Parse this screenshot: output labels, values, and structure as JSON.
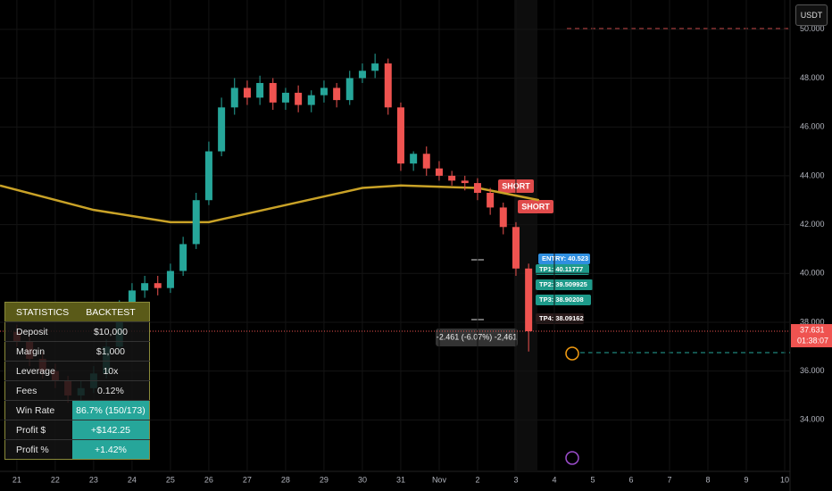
{
  "chart_data": {
    "type": "candlestick",
    "x": [
      0,
      0.33,
      0.67,
      1,
      1.33,
      1.67,
      2,
      2.33,
      2.67,
      3,
      3.33,
      3.67,
      4,
      4.33,
      4.67,
      5,
      5.33,
      5.67,
      6,
      6.33,
      6.67,
      7,
      7.33,
      7.67,
      8,
      8.33,
      8.67,
      9,
      9.33,
      9.67,
      10,
      10.33,
      10.67,
      11,
      11.33,
      11.67,
      12,
      12.33,
      12.67,
      13,
      13.33
    ],
    "open": [
      37.6,
      37.2,
      36.5,
      36.0,
      35.6,
      35.0,
      35.3,
      35.9,
      37.0,
      38.6,
      39.3,
      39.6,
      39.4,
      40.1,
      41.2,
      43.0,
      45.0,
      46.8,
      47.6,
      47.2,
      47.8,
      47.0,
      47.4,
      46.9,
      47.3,
      47.6,
      47.1,
      48.0,
      48.3,
      48.6,
      46.8,
      44.5,
      44.9,
      44.3,
      44.0,
      43.8,
      43.7,
      43.3,
      42.7,
      41.9,
      40.2
    ],
    "high": [
      37.9,
      37.4,
      36.8,
      36.3,
      35.8,
      35.6,
      36.2,
      37.3,
      38.9,
      39.6,
      39.9,
      39.9,
      40.4,
      41.5,
      43.3,
      45.4,
      47.2,
      48.0,
      47.9,
      48.1,
      48.0,
      47.6,
      47.7,
      47.5,
      47.9,
      47.8,
      48.3,
      48.6,
      49.0,
      48.8,
      47.0,
      45.0,
      45.2,
      44.6,
      44.2,
      44.0,
      43.9,
      43.5,
      42.9,
      42.1,
      40.4
    ],
    "low": [
      37.0,
      36.2,
      35.7,
      35.3,
      34.7,
      34.8,
      35.1,
      35.7,
      36.8,
      38.4,
      39.0,
      39.1,
      39.2,
      39.9,
      41.0,
      42.8,
      44.8,
      46.5,
      46.9,
      46.9,
      46.7,
      46.7,
      46.6,
      46.6,
      47.0,
      46.8,
      46.9,
      47.8,
      48.0,
      46.5,
      44.2,
      44.2,
      44.0,
      43.8,
      43.6,
      43.4,
      43.0,
      42.4,
      41.6,
      39.9,
      36.8
    ],
    "close": [
      37.2,
      36.5,
      36.0,
      35.6,
      35.0,
      35.3,
      35.9,
      37.0,
      38.6,
      39.3,
      39.6,
      39.4,
      40.1,
      41.2,
      43.0,
      45.0,
      46.8,
      47.6,
      47.2,
      47.8,
      47.0,
      47.4,
      46.9,
      47.3,
      47.6,
      47.1,
      48.0,
      48.3,
      48.6,
      46.8,
      44.5,
      44.9,
      44.3,
      44.0,
      43.8,
      43.7,
      43.3,
      42.7,
      41.9,
      40.2,
      37.631
    ],
    "up_color": "#26a69a",
    "down_color": "#ef5350",
    "ma": {
      "color": "#c9a227",
      "x": [
        -0.44,
        2,
        4,
        5,
        7,
        9,
        10,
        12,
        13.6
      ],
      "values": [
        43.6,
        42.6,
        42.1,
        42.1,
        42.8,
        43.5,
        43.6,
        43.5,
        43.0
      ]
    },
    "last_price_label": "37.631",
    "countdown": "01:38:07",
    "xlim": [
      -0.44,
      20.14
    ],
    "ylim": [
      32,
      51.2
    ],
    "xticks": [
      {
        "value": 0,
        "label": "21"
      },
      {
        "value": 1,
        "label": "22"
      },
      {
        "value": 2,
        "label": "23"
      },
      {
        "value": 3,
        "label": "24"
      },
      {
        "value": 4,
        "label": "25"
      },
      {
        "value": 5,
        "label": "26"
      },
      {
        "value": 6,
        "label": "27"
      },
      {
        "value": 7,
        "label": "28"
      },
      {
        "value": 8,
        "label": "29"
      },
      {
        "value": 9,
        "label": "30"
      },
      {
        "value": 10,
        "label": "31"
      },
      {
        "value": 11,
        "label": "Nov"
      },
      {
        "value": 12,
        "label": "2"
      },
      {
        "value": 13,
        "label": "3"
      },
      {
        "value": 14,
        "label": "4"
      },
      {
        "value": 15,
        "label": "5"
      },
      {
        "value": 16,
        "label": "6"
      },
      {
        "value": 17,
        "label": "7"
      },
      {
        "value": 18,
        "label": "8"
      },
      {
        "value": 19,
        "label": "9"
      },
      {
        "value": 20,
        "label": "10"
      }
    ],
    "yticks": [
      {
        "value": 34,
        "label": "34.000"
      },
      {
        "value": 36,
        "label": "36.000"
      },
      {
        "value": 38,
        "label": "38.000"
      },
      {
        "value": 40,
        "label": "40.000"
      },
      {
        "value": 42,
        "label": "42.000"
      },
      {
        "value": 44,
        "label": "44.000"
      },
      {
        "value": 46,
        "label": "46.000"
      },
      {
        "value": 48,
        "label": "48.000"
      },
      {
        "value": 50,
        "label": "50.000"
      }
    ]
  },
  "currency": "USDT",
  "annotations": {
    "short": [
      "SHORT",
      "SHORT"
    ],
    "entry": "ENTRY: 40.523",
    "tp": [
      "TP1: 40.11777",
      "TP2: 39.509925",
      "TP3: 38.90208",
      "TP4: 38.09162"
    ],
    "measure": "-2.461 (-6.07%) -2,461"
  },
  "stats": {
    "header": [
      "STATISTICS",
      "BACKTEST"
    ],
    "rows": [
      [
        "Deposit",
        "$10,000"
      ],
      [
        "Margin",
        "$1,000"
      ],
      [
        "Leverage",
        "10x"
      ],
      [
        "Fees",
        "0.12%"
      ],
      [
        "Win Rate",
        "86.7% (150/173)"
      ],
      [
        "Profit $",
        "+$142.25"
      ],
      [
        "Profit %",
        "+1.42%"
      ]
    ]
  }
}
